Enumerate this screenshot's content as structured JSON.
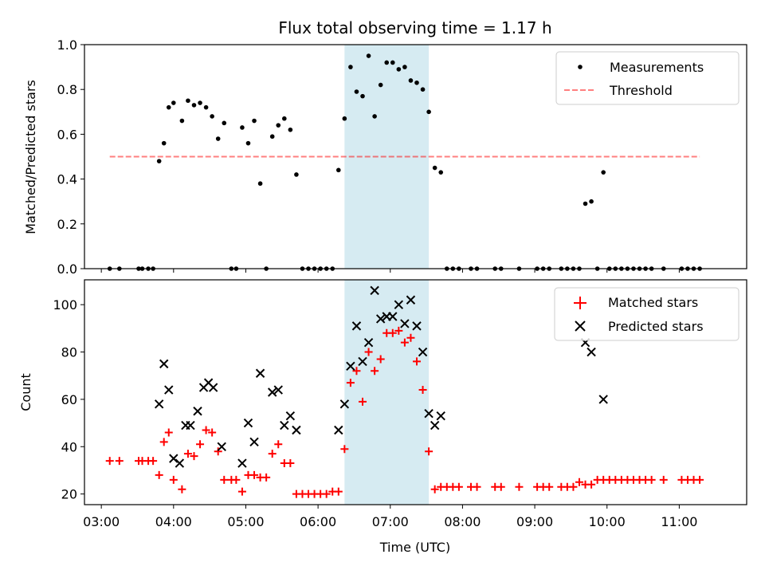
{
  "colors": {
    "band": "#add8e6",
    "threshold": "#ff0000",
    "matched": "#ff0000",
    "predicted": "#000000",
    "measurements": "#000000"
  },
  "chart_data": [
    {
      "type": "scatter",
      "title": "Flux total observing time = 1.17 h",
      "xlabel": "",
      "ylabel": "Matched/Predicted stars",
      "ylim": [
        0,
        1.0
      ],
      "xlim": [
        "02:46",
        "11:56"
      ],
      "yticks": [
        "0.0",
        "0.2",
        "0.4",
        "0.6",
        "0.8",
        "1.0"
      ],
      "grid": false,
      "legend": "top-right",
      "highlight_band": {
        "start": "06:22",
        "end": "07:32"
      },
      "series": [
        {
          "name": "Measurements",
          "marker": "dot",
          "points": [
            [
              "03:07",
              0
            ],
            [
              "03:15",
              0
            ],
            [
              "03:31",
              0
            ],
            [
              "03:34",
              0
            ],
            [
              "03:39",
              0
            ],
            [
              "03:43",
              0
            ],
            [
              "03:48",
              0.48
            ],
            [
              "03:52",
              0.56
            ],
            [
              "03:56",
              0.72
            ],
            [
              "04:00",
              0.74
            ],
            [
              "04:07",
              0.66
            ],
            [
              "04:12",
              0.75
            ],
            [
              "04:17",
              0.73
            ],
            [
              "04:22",
              0.74
            ],
            [
              "04:27",
              0.72
            ],
            [
              "04:32",
              0.68
            ],
            [
              "04:37",
              0.58
            ],
            [
              "04:42",
              0.65
            ],
            [
              "04:48",
              0
            ],
            [
              "04:52",
              0
            ],
            [
              "04:57",
              0.63
            ],
            [
              "05:02",
              0.56
            ],
            [
              "05:07",
              0.66
            ],
            [
              "05:12",
              0.38
            ],
            [
              "05:17",
              0
            ],
            [
              "05:22",
              0.59
            ],
            [
              "05:27",
              0.64
            ],
            [
              "05:32",
              0.67
            ],
            [
              "05:37",
              0.62
            ],
            [
              "05:42",
              0.42
            ],
            [
              "05:47",
              0
            ],
            [
              "05:52",
              0
            ],
            [
              "05:57",
              0
            ],
            [
              "06:02",
              0
            ],
            [
              "06:07",
              0
            ],
            [
              "06:12",
              0
            ],
            [
              "06:17",
              0.44
            ],
            [
              "06:22",
              0.67
            ],
            [
              "06:27",
              0.9
            ],
            [
              "06:32",
              0.79
            ],
            [
              "06:37",
              0.77
            ],
            [
              "06:42",
              0.95
            ],
            [
              "06:47",
              0.68
            ],
            [
              "06:52",
              0.82
            ],
            [
              "06:57",
              0.92
            ],
            [
              "07:02",
              0.92
            ],
            [
              "07:07",
              0.89
            ],
            [
              "07:12",
              0.9
            ],
            [
              "07:17",
              0.84
            ],
            [
              "07:22",
              0.83
            ],
            [
              "07:27",
              0.8
            ],
            [
              "07:32",
              0.7
            ],
            [
              "07:37",
              0.45
            ],
            [
              "07:42",
              0.43
            ],
            [
              "07:47",
              0
            ],
            [
              "07:52",
              0
            ],
            [
              "07:57",
              0
            ],
            [
              "08:07",
              0
            ],
            [
              "08:12",
              0
            ],
            [
              "08:27",
              0
            ],
            [
              "08:32",
              0
            ],
            [
              "08:47",
              0
            ],
            [
              "09:02",
              0
            ],
            [
              "09:07",
              0
            ],
            [
              "09:12",
              0
            ],
            [
              "09:22",
              0
            ],
            [
              "09:27",
              0
            ],
            [
              "09:32",
              0
            ],
            [
              "09:37",
              0
            ],
            [
              "09:42",
              0.29
            ],
            [
              "09:47",
              0.3
            ],
            [
              "09:52",
              0
            ],
            [
              "09:57",
              0.43
            ],
            [
              "10:02",
              0
            ],
            [
              "10:07",
              0
            ],
            [
              "10:12",
              0
            ],
            [
              "10:17",
              0
            ],
            [
              "10:22",
              0
            ],
            [
              "10:27",
              0
            ],
            [
              "10:32",
              0
            ],
            [
              "10:37",
              0
            ],
            [
              "10:47",
              0
            ],
            [
              "11:02",
              0
            ],
            [
              "11:07",
              0
            ],
            [
              "11:12",
              0
            ],
            [
              "11:17",
              0
            ]
          ]
        },
        {
          "name": "Threshold",
          "style": "dashed",
          "points": [
            [
              "03:07",
              0.5
            ],
            [
              "11:17",
              0.5
            ]
          ]
        }
      ]
    },
    {
      "type": "scatter",
      "xlabel": "Time (UTC)",
      "ylabel": "Count",
      "ylim": [
        15.5,
        110.5
      ],
      "xlim": [
        "02:46",
        "11:56"
      ],
      "xticks": [
        "03:00",
        "04:00",
        "05:00",
        "06:00",
        "07:00",
        "08:00",
        "09:00",
        "10:00",
        "11:00"
      ],
      "yticks": [
        "20",
        "40",
        "60",
        "80",
        "100"
      ],
      "grid": false,
      "legend": "top-right",
      "highlight_band": {
        "start": "06:22",
        "end": "07:32"
      },
      "series": [
        {
          "name": "Matched stars",
          "marker": "plus",
          "points": [
            [
              "03:07",
              34
            ],
            [
              "03:15",
              34
            ],
            [
              "03:31",
              34
            ],
            [
              "03:34",
              34
            ],
            [
              "03:39",
              34
            ],
            [
              "03:43",
              34
            ],
            [
              "03:48",
              28
            ],
            [
              "03:52",
              42
            ],
            [
              "03:56",
              46
            ],
            [
              "04:00",
              26
            ],
            [
              "04:07",
              22
            ],
            [
              "04:12",
              37
            ],
            [
              "04:17",
              36
            ],
            [
              "04:22",
              41
            ],
            [
              "04:27",
              47
            ],
            [
              "04:32",
              46
            ],
            [
              "04:37",
              38
            ],
            [
              "04:42",
              26
            ],
            [
              "04:48",
              26
            ],
            [
              "04:52",
              26
            ],
            [
              "04:57",
              21
            ],
            [
              "05:02",
              28
            ],
            [
              "05:07",
              28
            ],
            [
              "05:12",
              27
            ],
            [
              "05:17",
              27
            ],
            [
              "05:22",
              37
            ],
            [
              "05:27",
              41
            ],
            [
              "05:32",
              33
            ],
            [
              "05:37",
              33
            ],
            [
              "05:42",
              20
            ],
            [
              "05:47",
              20
            ],
            [
              "05:52",
              20
            ],
            [
              "05:57",
              20
            ],
            [
              "06:02",
              20
            ],
            [
              "06:07",
              20
            ],
            [
              "06:12",
              21
            ],
            [
              "06:17",
              21
            ],
            [
              "06:22",
              39
            ],
            [
              "06:27",
              67
            ],
            [
              "06:32",
              72
            ],
            [
              "06:37",
              59
            ],
            [
              "06:42",
              80
            ],
            [
              "06:47",
              72
            ],
            [
              "06:52",
              77
            ],
            [
              "06:57",
              88
            ],
            [
              "07:02",
              88
            ],
            [
              "07:07",
              89
            ],
            [
              "07:12",
              84
            ],
            [
              "07:17",
              86
            ],
            [
              "07:22",
              76
            ],
            [
              "07:27",
              64
            ],
            [
              "07:32",
              38
            ],
            [
              "07:37",
              22
            ],
            [
              "07:42",
              23
            ],
            [
              "07:47",
              23
            ],
            [
              "07:52",
              23
            ],
            [
              "07:57",
              23
            ],
            [
              "08:07",
              23
            ],
            [
              "08:12",
              23
            ],
            [
              "08:27",
              23
            ],
            [
              "08:32",
              23
            ],
            [
              "08:47",
              23
            ],
            [
              "09:02",
              23
            ],
            [
              "09:07",
              23
            ],
            [
              "09:12",
              23
            ],
            [
              "09:22",
              23
            ],
            [
              "09:27",
              23
            ],
            [
              "09:32",
              23
            ],
            [
              "09:37",
              25
            ],
            [
              "09:42",
              24
            ],
            [
              "09:47",
              24
            ],
            [
              "09:52",
              26
            ],
            [
              "09:57",
              26
            ],
            [
              "10:02",
              26
            ],
            [
              "10:07",
              26
            ],
            [
              "10:12",
              26
            ],
            [
              "10:17",
              26
            ],
            [
              "10:22",
              26
            ],
            [
              "10:27",
              26
            ],
            [
              "10:32",
              26
            ],
            [
              "10:37",
              26
            ],
            [
              "10:47",
              26
            ],
            [
              "11:02",
              26
            ],
            [
              "11:07",
              26
            ],
            [
              "11:12",
              26
            ],
            [
              "11:17",
              26
            ]
          ]
        },
        {
          "name": "Predicted stars",
          "marker": "x",
          "points": [
            [
              "03:48",
              58
            ],
            [
              "03:52",
              75
            ],
            [
              "03:56",
              64
            ],
            [
              "04:00",
              35
            ],
            [
              "04:05",
              33
            ],
            [
              "04:10",
              49
            ],
            [
              "04:14",
              49
            ],
            [
              "04:20",
              55
            ],
            [
              "04:25",
              65
            ],
            [
              "04:29",
              67
            ],
            [
              "04:33",
              65
            ],
            [
              "04:40",
              40
            ],
            [
              "04:57",
              33
            ],
            [
              "05:02",
              50
            ],
            [
              "05:07",
              42
            ],
            [
              "05:12",
              71
            ],
            [
              "05:22",
              63
            ],
            [
              "05:27",
              64
            ],
            [
              "05:32",
              49
            ],
            [
              "05:37",
              53
            ],
            [
              "05:42",
              47
            ],
            [
              "06:17",
              47
            ],
            [
              "06:22",
              58
            ],
            [
              "06:27",
              74
            ],
            [
              "06:32",
              91
            ],
            [
              "06:37",
              76
            ],
            [
              "06:42",
              84
            ],
            [
              "06:47",
              106
            ],
            [
              "06:52",
              94
            ],
            [
              "06:57",
              95
            ],
            [
              "07:02",
              95
            ],
            [
              "07:07",
              100
            ],
            [
              "07:12",
              92
            ],
            [
              "07:17",
              102
            ],
            [
              "07:22",
              91
            ],
            [
              "07:27",
              80
            ],
            [
              "07:32",
              54
            ],
            [
              "07:37",
              49
            ],
            [
              "07:42",
              53
            ],
            [
              "09:42",
              84
            ],
            [
              "09:47",
              80
            ],
            [
              "09:57",
              60
            ]
          ]
        }
      ]
    }
  ]
}
